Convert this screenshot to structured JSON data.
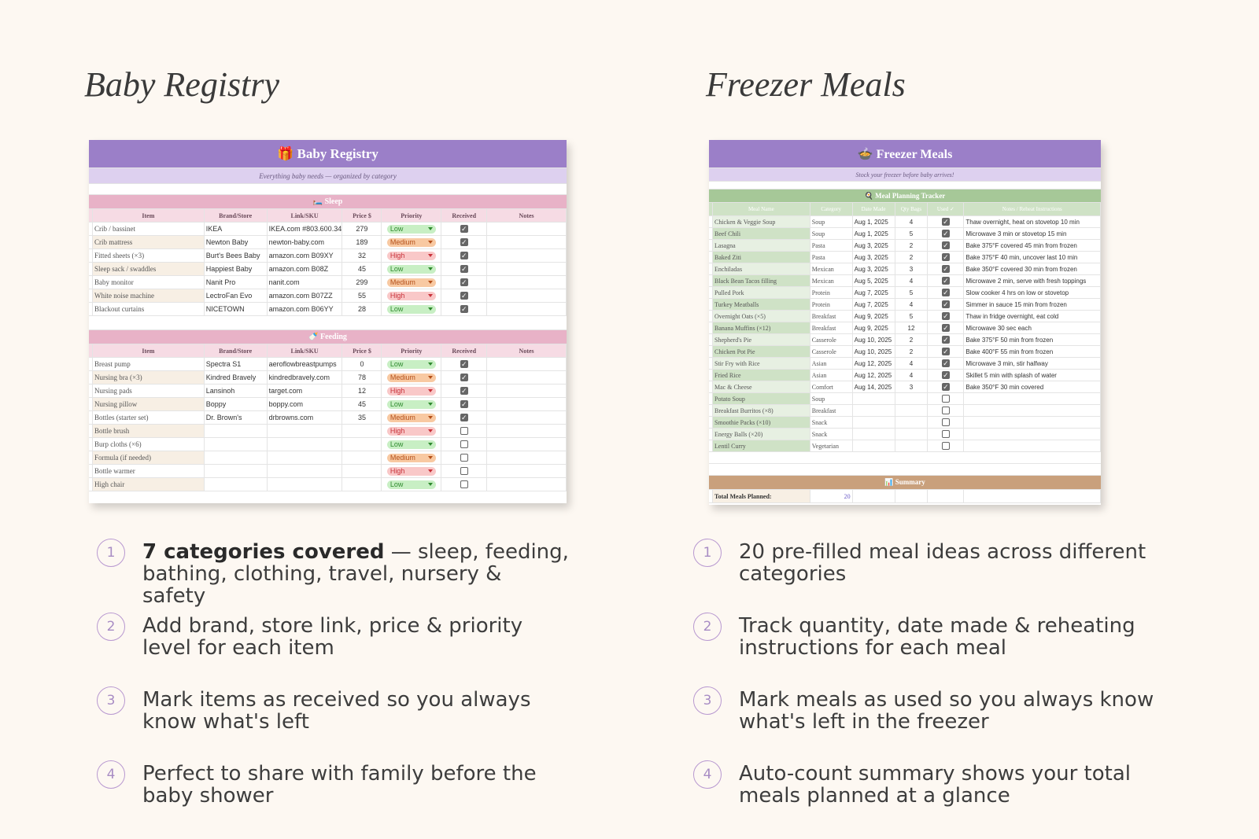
{
  "left": {
    "title": "Baby Registry",
    "sheet": {
      "title": "🎁 Baby Registry",
      "subtitle": "Everything baby needs — organized by category",
      "columns": [
        "Item",
        "Brand/Store",
        "Link/SKU",
        "Price $",
        "Priority",
        "Received",
        "Notes"
      ],
      "sections": [
        {
          "title": "🛏️ Sleep",
          "rows": [
            {
              "item": "Crib / bassinet",
              "brand": "IKEA",
              "link": "IKEA.com #803.600.34",
              "price": 279,
              "priority": "Low",
              "received": true
            },
            {
              "item": "Crib mattress",
              "brand": "Newton Baby",
              "link": "newton-baby.com",
              "price": 189,
              "priority": "Medium",
              "received": true
            },
            {
              "item": "Fitted sheets (×3)",
              "brand": "Burt's Bees Baby",
              "link": "amazon.com B09XY",
              "price": 32,
              "priority": "High",
              "received": true
            },
            {
              "item": "Sleep sack / swaddles",
              "brand": "Happiest Baby",
              "link": "amazon.com B08Z",
              "price": 45,
              "priority": "Low",
              "received": true
            },
            {
              "item": "Baby monitor",
              "brand": "Nanit Pro",
              "link": "nanit.com",
              "price": 299,
              "priority": "Medium",
              "received": true
            },
            {
              "item": "White noise machine",
              "brand": "LectroFan Evo",
              "link": "amazon.com B07ZZ",
              "price": 55,
              "priority": "High",
              "received": true
            },
            {
              "item": "Blackout curtains",
              "brand": "NICETOWN",
              "link": "amazon.com B06YY",
              "price": 28,
              "priority": "Low",
              "received": true
            }
          ]
        },
        {
          "title": "🍼 Feeding",
          "rows": [
            {
              "item": "Breast pump",
              "brand": "Spectra S1",
              "link": "aeroflowbreastpumps",
              "price": 0,
              "priority": "Low",
              "received": true
            },
            {
              "item": "Nursing bra (×3)",
              "brand": "Kindred Bravely",
              "link": "kindredbravely.com",
              "price": 78,
              "priority": "Medium",
              "received": true
            },
            {
              "item": "Nursing pads",
              "brand": "Lansinoh",
              "link": "target.com",
              "price": 12,
              "priority": "High",
              "received": true
            },
            {
              "item": "Nursing pillow",
              "brand": "Boppy",
              "link": "boppy.com",
              "price": 45,
              "priority": "Low",
              "received": true
            },
            {
              "item": "Bottles (starter set)",
              "brand": "Dr. Brown's",
              "link": "drbrowns.com",
              "price": 35,
              "priority": "Medium",
              "received": true
            },
            {
              "item": "Bottle brush",
              "priority": "High",
              "received": false
            },
            {
              "item": "Burp cloths (×6)",
              "priority": "Low",
              "received": false
            },
            {
              "item": "Formula (if needed)",
              "priority": "Medium",
              "received": false
            },
            {
              "item": "Bottle warmer",
              "priority": "High",
              "received": false
            },
            {
              "item": "High chair",
              "priority": "Low",
              "received": false
            }
          ]
        }
      ]
    },
    "features": [
      {
        "number": 1,
        "bold": "7 categories covered",
        "text": " — sleep, feeding, bathing, clothing, travel, nursery & safety"
      },
      {
        "number": 2,
        "text": "Add brand, store link, price & priority level for each item"
      },
      {
        "number": 3,
        "text": "Mark items as received so you always know what's left"
      },
      {
        "number": 4,
        "text": "Perfect to share with family before the baby shower"
      }
    ]
  },
  "right": {
    "title": "Freezer Meals",
    "sheet": {
      "title": "🍲 Freezer Meals",
      "subtitle": "Stock your freezer before baby arrives!",
      "section": "🍳 Meal Planning Tracker",
      "columns": [
        "Meal Name",
        "Category",
        "Date Made",
        "Qty Bags",
        "Used ✓",
        "Notes / Reheat Instructions"
      ],
      "rows": [
        {
          "meal": "Chicken & Veggie Soup",
          "category": "Soup",
          "date": "Aug 1, 2025",
          "qty": 4,
          "used": true,
          "notes": "Thaw overnight, heat on stovetop 10 min"
        },
        {
          "meal": "Beef Chili",
          "category": "Soup",
          "date": "Aug 1, 2025",
          "qty": 5,
          "used": true,
          "notes": "Microwave 3 min or stovetop 15 min"
        },
        {
          "meal": "Lasagna",
          "category": "Pasta",
          "date": "Aug 3, 2025",
          "qty": 2,
          "used": true,
          "notes": "Bake 375°F covered 45 min from frozen"
        },
        {
          "meal": "Baked Ziti",
          "category": "Pasta",
          "date": "Aug 3, 2025",
          "qty": 2,
          "used": true,
          "notes": "Bake 375°F 40 min, uncover last 10 min"
        },
        {
          "meal": "Enchiladas",
          "category": "Mexican",
          "date": "Aug 3, 2025",
          "qty": 3,
          "used": true,
          "notes": "Bake 350°F covered 30 min from frozen"
        },
        {
          "meal": "Black Bean Tacos filling",
          "category": "Mexican",
          "date": "Aug 5, 2025",
          "qty": 4,
          "used": true,
          "notes": "Microwave 2 min, serve with fresh toppings"
        },
        {
          "meal": "Pulled Pork",
          "category": "Protein",
          "date": "Aug 7, 2025",
          "qty": 5,
          "used": true,
          "notes": "Slow cooker 4 hrs on low or stovetop"
        },
        {
          "meal": "Turkey Meatballs",
          "category": "Protein",
          "date": "Aug 7, 2025",
          "qty": 4,
          "used": true,
          "notes": "Simmer in sauce 15 min from frozen"
        },
        {
          "meal": "Overnight Oats (×5)",
          "category": "Breakfast",
          "date": "Aug 9, 2025",
          "qty": 5,
          "used": true,
          "notes": "Thaw in fridge overnight, eat cold"
        },
        {
          "meal": "Banana Muffins (×12)",
          "category": "Breakfast",
          "date": "Aug 9, 2025",
          "qty": 12,
          "used": true,
          "notes": "Microwave 30 sec each"
        },
        {
          "meal": "Shepherd's Pie",
          "category": "Casserole",
          "date": "Aug 10, 2025",
          "qty": 2,
          "used": true,
          "notes": "Bake 375°F 50 min from frozen"
        },
        {
          "meal": "Chicken Pot Pie",
          "category": "Casserole",
          "date": "Aug 10, 2025",
          "qty": 2,
          "used": true,
          "notes": "Bake 400°F 55 min from frozen"
        },
        {
          "meal": "Stir Fry with Rice",
          "category": "Asian",
          "date": "Aug 12, 2025",
          "qty": 4,
          "used": true,
          "notes": "Microwave 3 min, stir halfway"
        },
        {
          "meal": "Fried Rice",
          "category": "Asian",
          "date": "Aug 12, 2025",
          "qty": 4,
          "used": true,
          "notes": "Skillet 5 min with splash of water"
        },
        {
          "meal": "Mac & Cheese",
          "category": "Comfort",
          "date": "Aug 14, 2025",
          "qty": 3,
          "used": true,
          "notes": "Bake 350°F 30 min covered"
        },
        {
          "meal": "Potato Soup",
          "category": "Soup",
          "used": false
        },
        {
          "meal": "Breakfast Burritos (×8)",
          "category": "Breakfast",
          "used": false
        },
        {
          "meal": "Smoothie Packs (×10)",
          "category": "Snack",
          "used": false
        },
        {
          "meal": "Energy Balls (×20)",
          "category": "Snack",
          "used": false
        },
        {
          "meal": "Lentil Curry",
          "category": "Vegetarian",
          "used": false
        }
      ],
      "summary": {
        "title": "📊 Summary",
        "label": "Total Meals Planned:",
        "value": 20
      }
    },
    "features": [
      {
        "number": 1,
        "text": "20 pre-filled meal ideas across different categories"
      },
      {
        "number": 2,
        "text": "Track quantity, date made & reheating instructions for each meal"
      },
      {
        "number": 3,
        "text": "Mark meals as used so you always know what's left in the freezer"
      },
      {
        "number": 4,
        "text": "Auto-count summary shows your total meals planned at a glance"
      }
    ]
  }
}
